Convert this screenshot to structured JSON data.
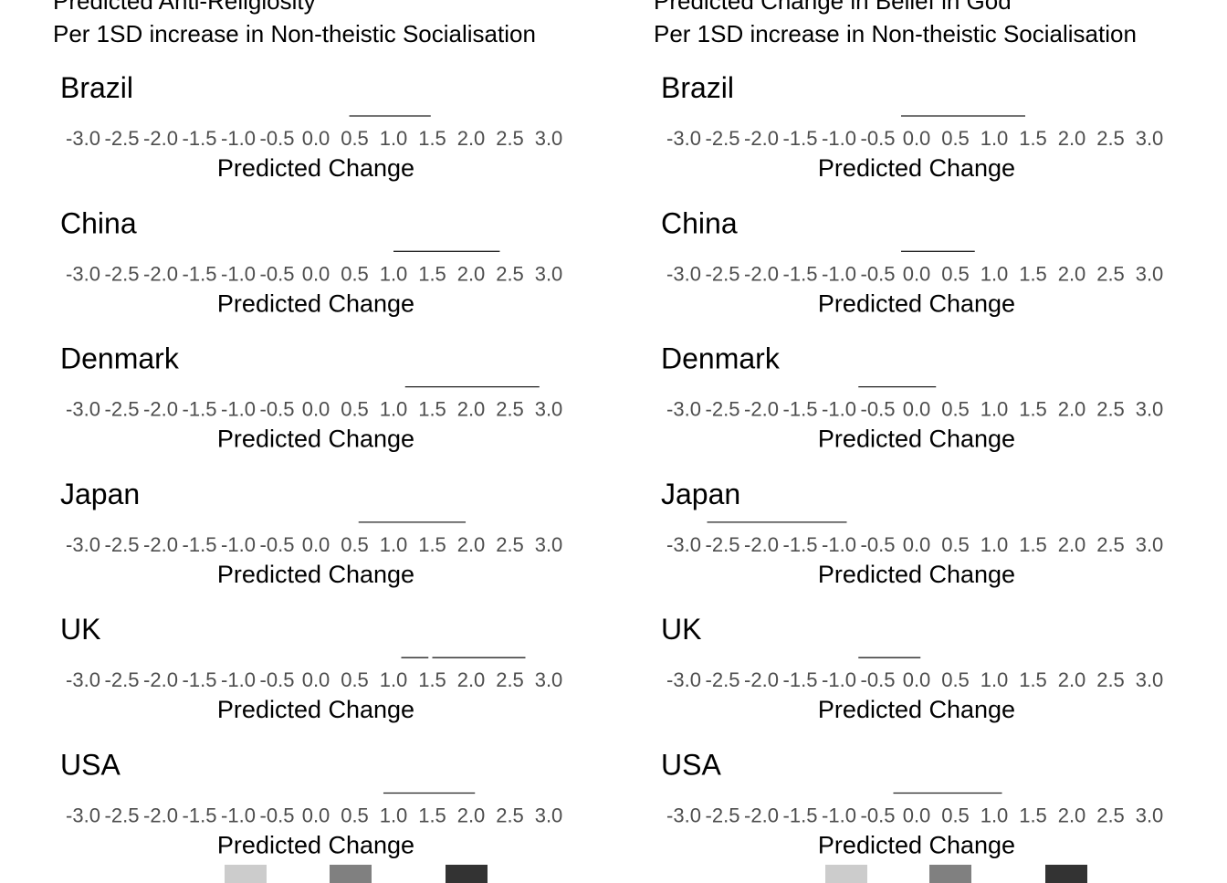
{
  "panels": [
    {
      "id": "left",
      "title": "Predicted Anti-Religiosity",
      "subtitle": "Per 1SD increase in Non-theistic Socialisation"
    },
    {
      "id": "right",
      "title": "Predicted Change in Belief in God",
      "subtitle": "Per 1SD increase in Non-theistic Socialisation"
    }
  ],
  "legend": {
    "colors": [
      "#cccccc",
      "#808080",
      "#333333"
    ]
  },
  "chart_data": [
    {
      "type": "interval",
      "title": "Predicted Anti-Religiosity",
      "subtitle": "Per 1SD increase in Non-theistic Socialisation",
      "xlabel": "Predicted Change",
      "xlim": [
        -3.0,
        3.0
      ],
      "x_ticks": [
        "-3.0",
        "-2.5",
        "-2.0",
        "-1.5",
        "-1.0",
        "-0.5",
        "0.0",
        "0.5",
        "1.0",
        "1.5",
        "2.0",
        "2.5",
        "3.0"
      ],
      "facets": [
        {
          "label": "Brazil",
          "intervals": [
            [
              0.43,
              1.48
            ]
          ]
        },
        {
          "label": "China",
          "intervals": [
            [
              1.0,
              2.37
            ]
          ]
        },
        {
          "label": "Denmark",
          "intervals": [
            [
              1.15,
              2.88
            ]
          ]
        },
        {
          "label": "Japan",
          "intervals": [
            [
              0.55,
              1.93
            ]
          ]
        },
        {
          "label": "UK",
          "intervals": [
            [
              1.1,
              1.45
            ],
            [
              1.5,
              2.7
            ]
          ]
        },
        {
          "label": "USA",
          "intervals": [
            [
              0.87,
              2.05
            ]
          ]
        }
      ]
    },
    {
      "type": "interval",
      "title": "Predicted Change in Belief in God",
      "subtitle": "Per 1SD increase in Non-theistic Socialisation",
      "xlabel": "Predicted Change",
      "xlim": [
        -3.0,
        3.0
      ],
      "x_ticks": [
        "-3.0",
        "-2.5",
        "-2.0",
        "-1.5",
        "-1.0",
        "-0.5",
        "0.0",
        "0.5",
        "1.0",
        "1.5",
        "2.0",
        "2.5",
        "3.0"
      ],
      "facets": [
        {
          "label": "Brazil",
          "intervals": [
            [
              -0.2,
              1.4
            ]
          ]
        },
        {
          "label": "China",
          "intervals": [
            [
              -0.2,
              0.75
            ]
          ]
        },
        {
          "label": "Denmark",
          "intervals": [
            [
              -0.75,
              0.25
            ]
          ]
        },
        {
          "label": "Japan",
          "intervals": [
            [
              -2.7,
              -0.9
            ]
          ]
        },
        {
          "label": "UK",
          "intervals": [
            [
              -0.75,
              0.05
            ]
          ]
        },
        {
          "label": "USA",
          "intervals": [
            [
              -0.3,
              1.1
            ]
          ]
        }
      ]
    }
  ]
}
